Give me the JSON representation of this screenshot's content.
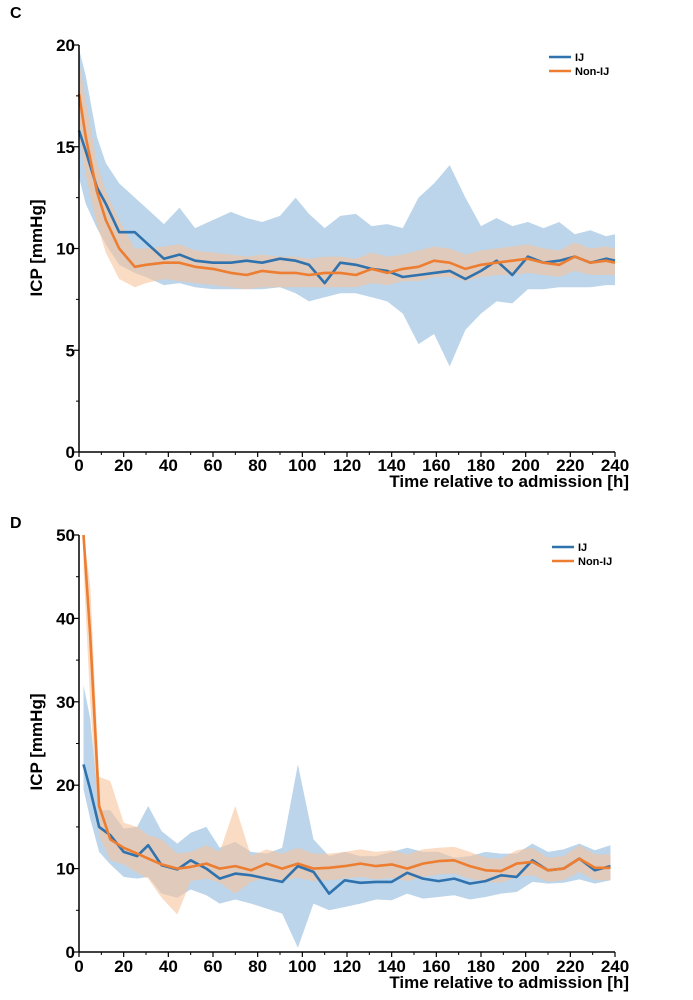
{
  "colors": {
    "ij": "#2f72ad",
    "ij_band": "#b5d0e8",
    "non_ij": "#ed7d31",
    "non_ij_band": "#f7c39b"
  },
  "chart_data": [
    {
      "type": "line",
      "panel_label": "C",
      "title": "",
      "xlabel": "Time relative to admission [h]",
      "ylabel": "ICP [mmHg]",
      "xlim": [
        0,
        240
      ],
      "ylim": [
        0,
        20
      ],
      "xticks": [
        "0",
        "20",
        "40",
        "60",
        "80",
        "100",
        "120",
        "140",
        "160",
        "180",
        "200",
        "220",
        "240"
      ],
      "yticks": [
        "0",
        "5",
        "10",
        "15",
        "20"
      ],
      "legend": {
        "position": "top-right",
        "entries": [
          "IJ",
          "Non-IJ"
        ]
      },
      "x": [
        0,
        3,
        8,
        12,
        18,
        25,
        30,
        38,
        45,
        52,
        60,
        68,
        75,
        82,
        90,
        97,
        103,
        110,
        117,
        124,
        131,
        138,
        145,
        152,
        159,
        166,
        173,
        180,
        187,
        194,
        201,
        208,
        215,
        222,
        229,
        236,
        240
      ],
      "series": [
        {
          "name": "IJ",
          "values": [
            15.8,
            14.8,
            13.0,
            12.2,
            10.8,
            10.8,
            10.3,
            9.5,
            9.7,
            9.4,
            9.3,
            9.3,
            9.4,
            9.3,
            9.5,
            9.4,
            9.2,
            8.3,
            9.3,
            9.2,
            9.0,
            8.9,
            8.6,
            8.7,
            8.8,
            8.9,
            8.5,
            8.9,
            9.4,
            8.7,
            9.6,
            9.3,
            9.4,
            9.6,
            9.3,
            9.5,
            9.4
          ],
          "lower": [
            13.5,
            12.2,
            11.0,
            10.2,
            9.2,
            8.8,
            8.6,
            8.2,
            8.3,
            8.1,
            8.0,
            8.0,
            8.0,
            8.0,
            8.1,
            7.8,
            7.4,
            7.6,
            7.8,
            7.8,
            7.6,
            7.4,
            6.8,
            5.3,
            5.8,
            4.2,
            6.0,
            6.8,
            7.4,
            7.3,
            8.0,
            8.0,
            8.1,
            8.1,
            8.1,
            8.2,
            8.2
          ],
          "upper": [
            19.8,
            18.5,
            15.5,
            14.2,
            13.2,
            12.5,
            12.0,
            11.2,
            12.0,
            11.0,
            11.4,
            11.8,
            11.5,
            11.3,
            11.6,
            12.5,
            11.7,
            11.0,
            11.6,
            11.7,
            11.1,
            11.2,
            11.0,
            12.5,
            13.2,
            14.1,
            12.5,
            11.1,
            11.5,
            11.1,
            11.3,
            11.0,
            11.3,
            10.7,
            10.9,
            10.6,
            10.7
          ]
        },
        {
          "name": "Non-IJ",
          "values": [
            17.6,
            15.5,
            12.8,
            11.4,
            10.0,
            9.1,
            9.2,
            9.3,
            9.3,
            9.1,
            9.0,
            8.8,
            8.7,
            8.9,
            8.8,
            8.8,
            8.7,
            8.8,
            8.8,
            8.7,
            9.0,
            8.8,
            9.0,
            9.1,
            9.4,
            9.3,
            9.0,
            9.2,
            9.3,
            9.4,
            9.5,
            9.3,
            9.2,
            9.6,
            9.3,
            9.4,
            9.3
          ],
          "lower": [
            15.6,
            13.6,
            11.2,
            9.8,
            8.5,
            8.1,
            8.3,
            8.5,
            8.4,
            8.3,
            8.2,
            8.1,
            8.0,
            8.1,
            8.1,
            8.1,
            8.1,
            8.1,
            8.1,
            8.1,
            8.3,
            8.2,
            8.4,
            8.4,
            8.6,
            8.6,
            8.4,
            8.6,
            8.7,
            8.7,
            8.8,
            8.7,
            8.6,
            8.9,
            8.7,
            8.7,
            8.7
          ],
          "upper": [
            19.2,
            17.3,
            14.2,
            12.8,
            11.4,
            10.0,
            10.0,
            10.1,
            10.2,
            9.9,
            9.8,
            9.7,
            9.6,
            9.7,
            9.6,
            9.6,
            9.5,
            9.6,
            9.6,
            9.5,
            9.8,
            9.6,
            9.7,
            9.9,
            10.1,
            10.0,
            9.7,
            9.9,
            10.0,
            10.1,
            10.2,
            10.0,
            9.9,
            10.3,
            10.0,
            10.1,
            10.0
          ]
        }
      ]
    },
    {
      "type": "line",
      "panel_label": "D",
      "title": "",
      "xlabel": "Time relative to admission [h]",
      "ylabel": "ICP [mmHg]",
      "xlim": [
        0,
        240
      ],
      "ylim": [
        0,
        50
      ],
      "xticks": [
        "0",
        "20",
        "40",
        "60",
        "80",
        "100",
        "120",
        "140",
        "160",
        "180",
        "200",
        "220",
        "240"
      ],
      "yticks": [
        "0",
        "10",
        "20",
        "30",
        "40",
        "50"
      ],
      "legend": {
        "position": "top-right",
        "entries": [
          "IJ",
          "Non-IJ"
        ]
      },
      "x": [
        2,
        5,
        9,
        14,
        20,
        26,
        31,
        37,
        44,
        50,
        57,
        63,
        70,
        77,
        84,
        91,
        98,
        105,
        112,
        119,
        126,
        133,
        140,
        147,
        154,
        161,
        168,
        175,
        182,
        189,
        196,
        203,
        210,
        217,
        224,
        231,
        238
      ],
      "series": [
        {
          "name": "IJ",
          "values": [
            22.5,
            19.5,
            15.0,
            14.0,
            12.0,
            11.5,
            12.8,
            10.4,
            9.9,
            11.0,
            10.0,
            8.8,
            9.4,
            9.2,
            8.8,
            8.4,
            10.3,
            9.6,
            7.0,
            8.6,
            8.3,
            8.4,
            8.4,
            9.5,
            8.8,
            8.5,
            8.8,
            8.2,
            8.5,
            9.2,
            9.0,
            11.0,
            9.8,
            10.0,
            11.2,
            9.8,
            10.3
          ],
          "lower": [
            19.5,
            16.0,
            12.0,
            10.5,
            9.0,
            8.8,
            9.0,
            7.0,
            6.5,
            7.5,
            6.8,
            5.8,
            6.3,
            5.8,
            5.2,
            4.6,
            0.5,
            5.8,
            5.0,
            5.4,
            5.8,
            6.3,
            6.2,
            7.0,
            6.4,
            6.6,
            6.8,
            6.3,
            6.6,
            7.0,
            7.2,
            8.4,
            8.2,
            8.3,
            8.7,
            8.2,
            8.6
          ],
          "upper": [
            32.0,
            28.0,
            17.0,
            17.0,
            14.8,
            15.0,
            17.5,
            14.5,
            13.0,
            14.3,
            15.0,
            12.5,
            13.2,
            12.0,
            11.8,
            12.5,
            22.5,
            13.5,
            11.5,
            12.0,
            11.5,
            11.5,
            12.0,
            12.5,
            12.0,
            12.0,
            11.3,
            11.5,
            12.0,
            11.8,
            11.8,
            13.0,
            12.0,
            12.3,
            13.0,
            12.2,
            12.8
          ]
        },
        {
          "name": "Non-IJ",
          "values": [
            50.0,
            38.0,
            17.5,
            13.5,
            12.5,
            11.8,
            11.2,
            10.5,
            10.0,
            10.2,
            10.6,
            10.0,
            10.3,
            9.8,
            10.6,
            10.0,
            10.6,
            10.0,
            10.1,
            10.3,
            10.6,
            10.3,
            10.5,
            10.0,
            10.6,
            10.9,
            11.0,
            10.3,
            9.8,
            9.7,
            10.6,
            10.8,
            9.8,
            10.0,
            11.2,
            10.1,
            10.1
          ],
          "lower": [
            46.0,
            30.0,
            14.0,
            11.0,
            10.5,
            9.5,
            8.8,
            6.5,
            4.5,
            8.5,
            8.8,
            8.3,
            7.0,
            8.4,
            8.9,
            8.6,
            8.9,
            8.5,
            8.6,
            8.8,
            9.0,
            8.7,
            8.9,
            8.5,
            9.0,
            9.3,
            9.4,
            8.8,
            8.4,
            8.3,
            9.0,
            9.2,
            8.4,
            8.6,
            9.6,
            8.6,
            8.6
          ],
          "upper": [
            50.0,
            44.0,
            21.0,
            20.5,
            15.5,
            15.0,
            14.0,
            13.5,
            11.8,
            12.0,
            12.8,
            12.0,
            17.5,
            11.5,
            12.3,
            11.8,
            12.5,
            11.8,
            11.8,
            12.0,
            12.3,
            12.0,
            12.2,
            11.7,
            12.3,
            12.5,
            12.6,
            12.0,
            11.3,
            11.2,
            12.2,
            12.5,
            11.3,
            11.5,
            12.8,
            11.7,
            11.7
          ]
        }
      ]
    }
  ]
}
